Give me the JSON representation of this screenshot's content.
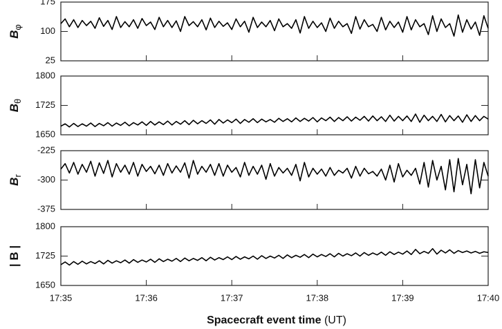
{
  "chart_data": {
    "type": "line",
    "xlabel": "Spacecraft event time",
    "xlabel_unit": "(UT)",
    "xlim": [
      1055,
      1060
    ],
    "xticks": [
      {
        "value": 1055,
        "label": "17:35"
      },
      {
        "value": 1056,
        "label": "17:36"
      },
      {
        "value": 1057,
        "label": "17:37"
      },
      {
        "value": 1058,
        "label": "17:38"
      },
      {
        "value": 1059,
        "label": "17:39"
      },
      {
        "value": 1060,
        "label": "17:40"
      }
    ],
    "color": "#000000",
    "x": [
      1055,
      1055.05,
      1055.1,
      1055.15,
      1055.2,
      1055.25,
      1055.3,
      1055.35,
      1055.4,
      1055.45,
      1055.5,
      1055.55,
      1055.6,
      1055.65,
      1055.7,
      1055.75,
      1055.8,
      1055.85,
      1055.9,
      1055.95,
      1056,
      1056.05,
      1056.1,
      1056.15,
      1056.2,
      1056.25,
      1056.3,
      1056.35,
      1056.4,
      1056.45,
      1056.5,
      1056.55,
      1056.6,
      1056.65,
      1056.7,
      1056.75,
      1056.8,
      1056.85,
      1056.9,
      1056.95,
      1057,
      1057.05,
      1057.1,
      1057.15,
      1057.2,
      1057.25,
      1057.3,
      1057.35,
      1057.4,
      1057.45,
      1057.5,
      1057.55,
      1057.6,
      1057.65,
      1057.7,
      1057.75,
      1057.8,
      1057.85,
      1057.9,
      1057.95,
      1058,
      1058.05,
      1058.1,
      1058.15,
      1058.2,
      1058.25,
      1058.3,
      1058.35,
      1058.4,
      1058.45,
      1058.5,
      1058.55,
      1058.6,
      1058.65,
      1058.7,
      1058.75,
      1058.8,
      1058.85,
      1058.9,
      1058.95,
      1059,
      1059.05,
      1059.1,
      1059.15,
      1059.2,
      1059.25,
      1059.3,
      1059.35,
      1059.4,
      1059.45,
      1059.5,
      1059.55,
      1059.6,
      1059.65,
      1059.7,
      1059.75,
      1059.8,
      1059.85,
      1059.9,
      1059.95,
      1060
    ],
    "panels": [
      {
        "ylabel": "B",
        "ylabel_sub": "φ",
        "ylim": [
          25,
          175
        ],
        "yticks": [
          25,
          100,
          175
        ],
        "values": [
          120,
          132,
          112,
          130,
          110,
          128,
          115,
          126,
          108,
          135,
          113,
          128,
          105,
          138,
          110,
          125,
          112,
          130,
          108,
          133,
          115,
          124,
          105,
          136,
          112,
          128,
          110,
          127,
          100,
          138,
          115,
          125,
          112,
          130,
          104,
          134,
          110,
          126,
          113,
          122,
          105,
          132,
          112,
          126,
          98,
          136,
          110,
          124,
          112,
          128,
          102,
          132,
          112,
          120,
          108,
          130,
          96,
          138,
          108,
          126,
          110,
          122,
          100,
          134,
          108,
          126,
          112,
          120,
          95,
          138,
          106,
          130,
          112,
          118,
          100,
          136,
          104,
          126,
          110,
          124,
          98,
          138,
          104,
          130,
          112,
          120,
          92,
          140,
          100,
          132,
          110,
          120,
          88,
          142,
          98,
          130,
          106,
          124,
          90,
          140,
          108
        ]
      },
      {
        "ylabel": "B",
        "ylabel_sub": "θ",
        "ylim": [
          1650,
          1800
        ],
        "yticks": [
          1650,
          1725,
          1800
        ],
        "values": [
          1672,
          1678,
          1670,
          1679,
          1671,
          1678,
          1672,
          1680,
          1671,
          1679,
          1673,
          1681,
          1672,
          1680,
          1674,
          1682,
          1673,
          1681,
          1675,
          1683,
          1674,
          1684,
          1675,
          1683,
          1676,
          1685,
          1675,
          1684,
          1677,
          1686,
          1676,
          1687,
          1678,
          1686,
          1679,
          1688,
          1677,
          1689,
          1680,
          1688,
          1681,
          1690,
          1679,
          1689,
          1682,
          1691,
          1681,
          1690,
          1683,
          1689,
          1682,
          1692,
          1684,
          1691,
          1683,
          1693,
          1684,
          1692,
          1685,
          1694,
          1683,
          1693,
          1686,
          1695,
          1684,
          1694,
          1686,
          1696,
          1685,
          1695,
          1687,
          1697,
          1685,
          1698,
          1686,
          1696,
          1684,
          1700,
          1685,
          1697,
          1686,
          1698,
          1684,
          1703,
          1682,
          1700,
          1686,
          1697,
          1684,
          1702,
          1683,
          1699,
          1686,
          1698,
          1682,
          1701,
          1684,
          1699,
          1686,
          1697,
          1690
        ]
      },
      {
        "ylabel": "B",
        "ylabel_sub": "r",
        "ylim": [
          -375,
          -225
        ],
        "yticks": [
          -375,
          -300,
          -225
        ],
        "values": [
          -272,
          -258,
          -282,
          -255,
          -285,
          -260,
          -280,
          -252,
          -290,
          -256,
          -283,
          -250,
          -292,
          -258,
          -280,
          -262,
          -285,
          -255,
          -290,
          -260,
          -278,
          -265,
          -284,
          -262,
          -288,
          -258,
          -282,
          -264,
          -280,
          -256,
          -295,
          -250,
          -285,
          -265,
          -280,
          -260,
          -288,
          -258,
          -290,
          -262,
          -280,
          -268,
          -292,
          -255,
          -288,
          -265,
          -285,
          -262,
          -298,
          -258,
          -290,
          -268,
          -282,
          -270,
          -288,
          -260,
          -302,
          -255,
          -292,
          -270,
          -285,
          -272,
          -290,
          -268,
          -288,
          -275,
          -282,
          -270,
          -295,
          -265,
          -290,
          -270,
          -284,
          -278,
          -290,
          -272,
          -300,
          -262,
          -305,
          -258,
          -292,
          -275,
          -288,
          -270,
          -310,
          -255,
          -318,
          -250,
          -300,
          -265,
          -325,
          -248,
          -330,
          -245,
          -312,
          -260,
          -335,
          -248,
          -320,
          -255,
          -290
        ]
      },
      {
        "ylabel": "| B |",
        "ylim": [
          1650,
          1800
        ],
        "yticks": [
          1650,
          1725,
          1800
        ],
        "values": [
          1703,
          1710,
          1702,
          1711,
          1704,
          1712,
          1705,
          1711,
          1706,
          1713,
          1705,
          1714,
          1707,
          1713,
          1708,
          1715,
          1707,
          1716,
          1709,
          1715,
          1710,
          1717,
          1709,
          1718,
          1711,
          1717,
          1712,
          1719,
          1711,
          1720,
          1713,
          1719,
          1714,
          1721,
          1713,
          1722,
          1715,
          1721,
          1716,
          1723,
          1716,
          1724,
          1717,
          1723,
          1718,
          1725,
          1717,
          1726,
          1719,
          1725,
          1720,
          1727,
          1719,
          1728,
          1721,
          1727,
          1722,
          1729,
          1721,
          1730,
          1723,
          1729,
          1724,
          1731,
          1723,
          1732,
          1725,
          1731,
          1726,
          1733,
          1725,
          1734,
          1727,
          1733,
          1728,
          1735,
          1727,
          1736,
          1729,
          1735,
          1730,
          1738,
          1729,
          1742,
          1731,
          1737,
          1732,
          1744,
          1730,
          1740,
          1733,
          1741,
          1732,
          1739,
          1734,
          1738,
          1733,
          1737,
          1732,
          1736,
          1734
        ]
      }
    ]
  }
}
